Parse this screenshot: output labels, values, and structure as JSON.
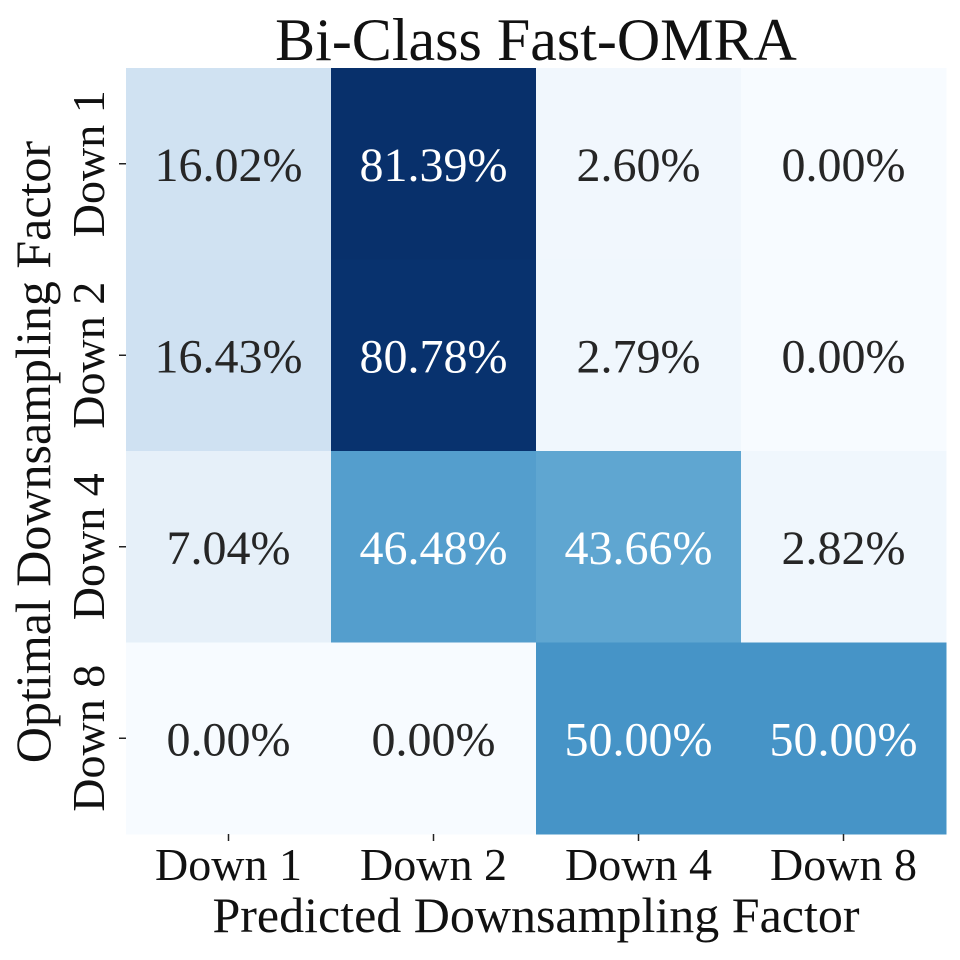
{
  "chart_data": {
    "type": "heatmap",
    "title": "Bi-Class Fast-OMRA",
    "xlabel": "Predicted Downsampling Factor",
    "ylabel": "Optimal Downsampling Factor",
    "x_categories": [
      "Down 1",
      "Down 2",
      "Down 4",
      "Down 8"
    ],
    "y_categories": [
      "Down 1",
      "Down 2",
      "Down 4",
      "Down 8"
    ],
    "values": [
      [
        16.02,
        81.39,
        2.6,
        0.0
      ],
      [
        16.43,
        80.78,
        2.79,
        0.0
      ],
      [
        7.04,
        46.48,
        43.66,
        2.82
      ],
      [
        0.0,
        0.0,
        50.0,
        50.0
      ]
    ],
    "value_labels": [
      [
        "16.02%",
        "81.39%",
        "2.60%",
        "0.00%"
      ],
      [
        "16.43%",
        "80.78%",
        "2.79%",
        "0.00%"
      ],
      [
        "7.04%",
        "46.48%",
        "43.66%",
        "2.82%"
      ],
      [
        "0.00%",
        "0.00%",
        "50.00%",
        "50.00%"
      ]
    ],
    "colormap": "Blues",
    "vmin": 0,
    "vmax": 81.39,
    "colorbar": false
  },
  "colors": {
    "text_dark": "#262626",
    "text_light": "#ffffff",
    "axis_text": "#111111"
  }
}
